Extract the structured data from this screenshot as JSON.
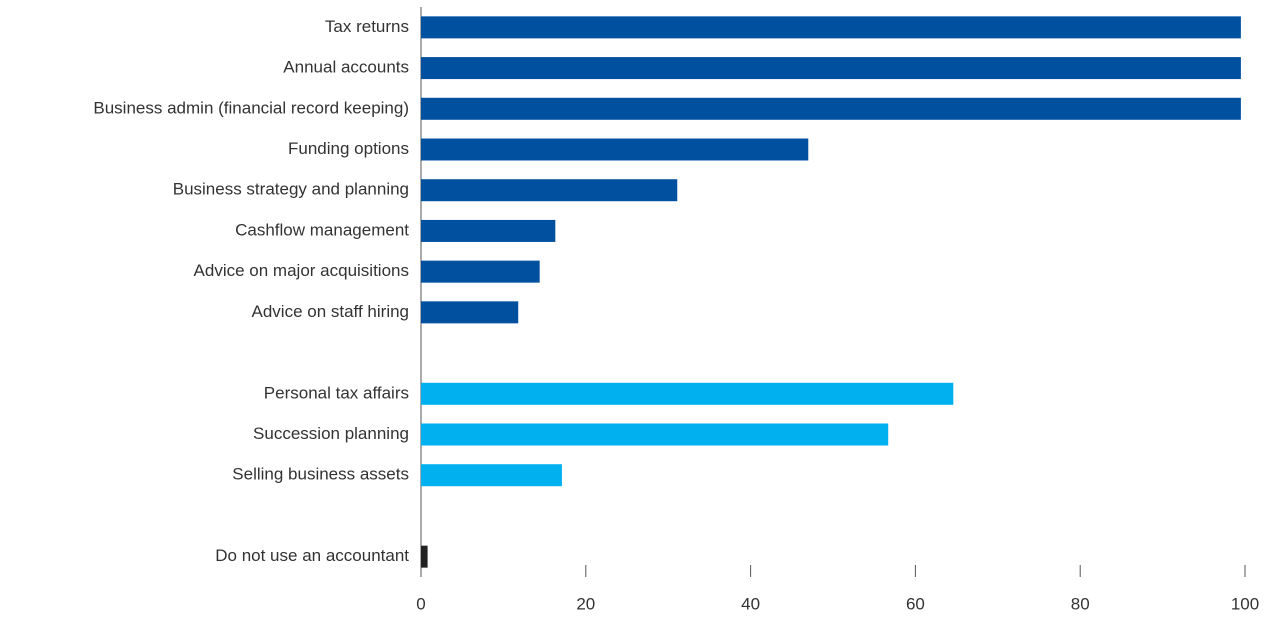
{
  "chart_data": {
    "type": "barh",
    "categories": [
      "Tax returns",
      "Annual accounts",
      "Business admin (financial record keeping)",
      "Funding options",
      "Business strategy and planning",
      "Cashflow management",
      "Advice on major acquisitions",
      "Advice on staff hiring",
      null,
      "Personal tax affairs",
      "Succession planning",
      "Selling business assets",
      null,
      "Do not use an accountant"
    ],
    "values": [
      99.5,
      99.5,
      99.5,
      47.0,
      31.1,
      16.3,
      14.4,
      11.8,
      null,
      64.6,
      56.7,
      17.1,
      null,
      0.8
    ],
    "colors": [
      "#0050a0",
      "#0050a0",
      "#0050a0",
      "#0050a0",
      "#0050a0",
      "#0050a0",
      "#0050a0",
      "#0050a0",
      null,
      "#00b0ef",
      "#00b0ef",
      "#00b0ef",
      null,
      "#222222"
    ],
    "xlim": [
      0,
      100
    ],
    "xticks": [
      0,
      20,
      40,
      60,
      80,
      100
    ]
  }
}
